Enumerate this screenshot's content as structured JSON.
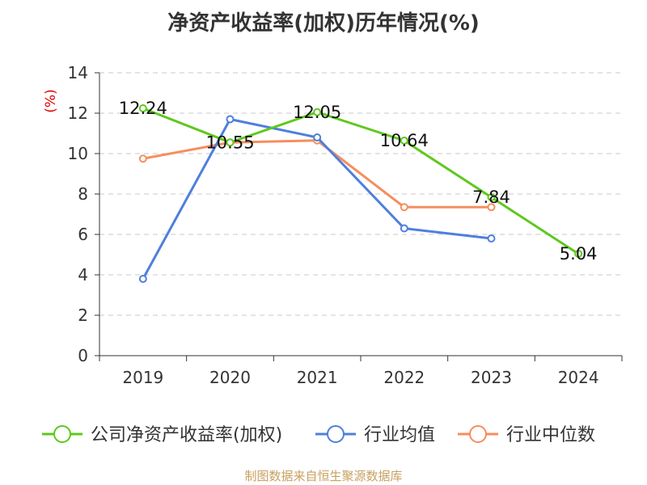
{
  "chart_data": {
    "type": "line",
    "title": "净资产收益率(加权)历年情况(%)",
    "ylabel": "(%)",
    "ylim": [
      0,
      14
    ],
    "yticks": [
      0,
      2,
      4,
      6,
      8,
      10,
      12,
      14
    ],
    "grid": true,
    "legend_position": "bottom",
    "categories": [
      "2019",
      "2020",
      "2021",
      "2022",
      "2023",
      "2024"
    ],
    "series": [
      {
        "name": "公司净资产收益率(加权)",
        "color": "#5ec81e",
        "values": [
          12.24,
          10.55,
          12.05,
          10.64,
          7.84,
          5.04
        ],
        "labels": [
          "12.24",
          "10.55",
          "12.05",
          "10.64",
          "7.84",
          "5.04"
        ]
      },
      {
        "name": "行业均值",
        "color": "#4e7fdc",
        "values": [
          3.8,
          11.7,
          10.8,
          6.3,
          5.8,
          null
        ]
      },
      {
        "name": "行业中位数",
        "color": "#f58e5e",
        "values": [
          9.75,
          10.55,
          10.65,
          7.35,
          7.35,
          null
        ]
      }
    ]
  },
  "source_note": "制图数据来自恒生聚源数据库"
}
